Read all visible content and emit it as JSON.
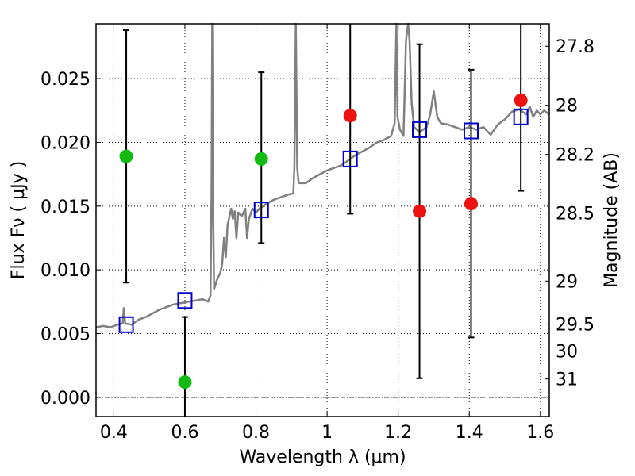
{
  "chart_data": {
    "type": "scatter",
    "xlabel": "Wavelength  λ (μm)",
    "ylabel": "Flux  Fν  ( μJy )",
    "y2label": "Magnitude (AB)",
    "xlim": [
      0.35,
      1.625
    ],
    "ylim": [
      -0.0015,
      0.0293
    ],
    "grid": true,
    "xticks": [
      {
        "value": 0.4,
        "label": "0.4"
      },
      {
        "value": 0.6,
        "label": "0.6"
      },
      {
        "value": 0.8,
        "label": "0.8"
      },
      {
        "value": 1.0,
        "label": "1"
      },
      {
        "value": 1.2,
        "label": "1.2"
      },
      {
        "value": 1.4,
        "label": "1.4"
      },
      {
        "value": 1.6,
        "label": "1.6"
      }
    ],
    "yticks": [
      {
        "value": 0.0,
        "label": "0.000"
      },
      {
        "value": 0.005,
        "label": "0.005"
      },
      {
        "value": 0.01,
        "label": "0.010"
      },
      {
        "value": 0.015,
        "label": "0.015"
      },
      {
        "value": 0.02,
        "label": "0.020"
      },
      {
        "value": 0.025,
        "label": "0.025"
      }
    ],
    "y2ticks": [
      {
        "value": 27.8,
        "label": "27.8"
      },
      {
        "value": 28.0,
        "label": "28"
      },
      {
        "value": 28.2,
        "label": "28.2"
      },
      {
        "value": 28.5,
        "label": "28.5"
      },
      {
        "value": 29.0,
        "label": "29"
      },
      {
        "value": 29.5,
        "label": "29.5"
      },
      {
        "value": 30.0,
        "label": "30"
      },
      {
        "value": 31.0,
        "label": "31"
      }
    ],
    "colors": {
      "spectrum": "#808080",
      "model": "#0000cc",
      "green": "#11bb11",
      "red": "#ee1111",
      "errorbar": "#000000"
    },
    "spectrum": [
      [
        0.35,
        0.0055
      ],
      [
        0.37,
        0.0056
      ],
      [
        0.39,
        0.0055
      ],
      [
        0.41,
        0.0057
      ],
      [
        0.425,
        0.0058
      ],
      [
        0.428,
        0.007
      ],
      [
        0.432,
        0.0058
      ],
      [
        0.45,
        0.0057
      ],
      [
        0.47,
        0.0061
      ],
      [
        0.49,
        0.0063
      ],
      [
        0.51,
        0.0066
      ],
      [
        0.53,
        0.0069
      ],
      [
        0.55,
        0.0071
      ],
      [
        0.57,
        0.0073
      ],
      [
        0.59,
        0.0074
      ],
      [
        0.61,
        0.0075
      ],
      [
        0.63,
        0.0076
      ],
      [
        0.65,
        0.0077
      ],
      [
        0.665,
        0.0075
      ],
      [
        0.672,
        0.008
      ],
      [
        0.675,
        0.016
      ],
      [
        0.677,
        0.0293
      ],
      [
        0.679,
        0.016
      ],
      [
        0.682,
        0.0085
      ],
      [
        0.69,
        0.0092
      ],
      [
        0.7,
        0.0098
      ],
      [
        0.705,
        0.0105
      ],
      [
        0.71,
        0.0125
      ],
      [
        0.715,
        0.011
      ],
      [
        0.72,
        0.0135
      ],
      [
        0.73,
        0.0148
      ],
      [
        0.735,
        0.014
      ],
      [
        0.74,
        0.0146
      ],
      [
        0.745,
        0.0125
      ],
      [
        0.75,
        0.0145
      ],
      [
        0.76,
        0.0142
      ],
      [
        0.77,
        0.0148
      ],
      [
        0.775,
        0.0125
      ],
      [
        0.78,
        0.014
      ],
      [
        0.79,
        0.0148
      ],
      [
        0.8,
        0.0145
      ],
      [
        0.81,
        0.0148
      ],
      [
        0.83,
        0.0152
      ],
      [
        0.85,
        0.0155
      ],
      [
        0.87,
        0.0157
      ],
      [
        0.89,
        0.0159
      ],
      [
        0.905,
        0.016
      ],
      [
        0.908,
        0.018
      ],
      [
        0.912,
        0.0293
      ],
      [
        0.916,
        0.018
      ],
      [
        0.92,
        0.0168
      ],
      [
        0.94,
        0.0168
      ],
      [
        0.96,
        0.0172
      ],
      [
        0.98,
        0.0175
      ],
      [
        1.0,
        0.0178
      ],
      [
        1.02,
        0.018
      ],
      [
        1.04,
        0.0182
      ],
      [
        1.06,
        0.0186
      ],
      [
        1.08,
        0.019
      ],
      [
        1.1,
        0.0193
      ],
      [
        1.12,
        0.0196
      ],
      [
        1.14,
        0.02
      ],
      [
        1.16,
        0.0202
      ],
      [
        1.18,
        0.0205
      ],
      [
        1.19,
        0.0215
      ],
      [
        1.195,
        0.0293
      ],
      [
        1.198,
        0.022
      ],
      [
        1.205,
        0.021
      ],
      [
        1.215,
        0.0205
      ],
      [
        1.222,
        0.028
      ],
      [
        1.228,
        0.0293
      ],
      [
        1.232,
        0.028
      ],
      [
        1.238,
        0.023
      ],
      [
        1.245,
        0.0212
      ],
      [
        1.26,
        0.0208
      ],
      [
        1.27,
        0.021
      ],
      [
        1.28,
        0.0212
      ],
      [
        1.29,
        0.0222
      ],
      [
        1.3,
        0.024
      ],
      [
        1.31,
        0.022
      ],
      [
        1.32,
        0.0215
      ],
      [
        1.34,
        0.0214
      ],
      [
        1.36,
        0.0212
      ],
      [
        1.38,
        0.021
      ],
      [
        1.4,
        0.0212
      ],
      [
        1.42,
        0.021
      ],
      [
        1.44,
        0.0212
      ],
      [
        1.46,
        0.0206
      ],
      [
        1.48,
        0.0214
      ],
      [
        1.5,
        0.0218
      ],
      [
        1.52,
        0.0224
      ],
      [
        1.54,
        0.0226
      ],
      [
        1.56,
        0.0222
      ],
      [
        1.57,
        0.0228
      ],
      [
        1.58,
        0.022
      ],
      [
        1.59,
        0.0225
      ],
      [
        1.6,
        0.0222
      ],
      [
        1.61,
        0.0225
      ],
      [
        1.625,
        0.0222
      ]
    ],
    "series": [
      {
        "marker": "open-square",
        "color_key": "model",
        "points": [
          {
            "x": 0.435,
            "y": 0.0057
          },
          {
            "x": 0.6,
            "y": 0.0076
          },
          {
            "x": 0.815,
            "y": 0.0147
          },
          {
            "x": 1.065,
            "y": 0.0187
          },
          {
            "x": 1.26,
            "y": 0.021
          },
          {
            "x": 1.405,
            "y": 0.0209
          },
          {
            "x": 1.545,
            "y": 0.022
          }
        ]
      },
      {
        "marker": "filled-circle",
        "color_key": "green",
        "points": [
          {
            "x": 0.435,
            "y": 0.0189,
            "ylo": 0.009,
            "yhi": 0.0288
          },
          {
            "x": 0.6,
            "y": 0.0012,
            "ylo": -0.0015,
            "yhi": 0.0063
          },
          {
            "x": 0.815,
            "y": 0.0187,
            "ylo": 0.0121,
            "yhi": 0.0255
          }
        ]
      },
      {
        "marker": "filled-circle",
        "color_key": "red",
        "points": [
          {
            "x": 1.065,
            "y": 0.0221,
            "ylo": 0.0144,
            "yhi": 0.0293
          },
          {
            "x": 1.26,
            "y": 0.0146,
            "ylo": 0.0015,
            "yhi": 0.0277
          },
          {
            "x": 1.405,
            "y": 0.0152,
            "ylo": 0.0047,
            "yhi": 0.0257
          },
          {
            "x": 1.545,
            "y": 0.0233,
            "ylo": 0.0162,
            "yhi": 0.0293
          }
        ]
      }
    ]
  }
}
